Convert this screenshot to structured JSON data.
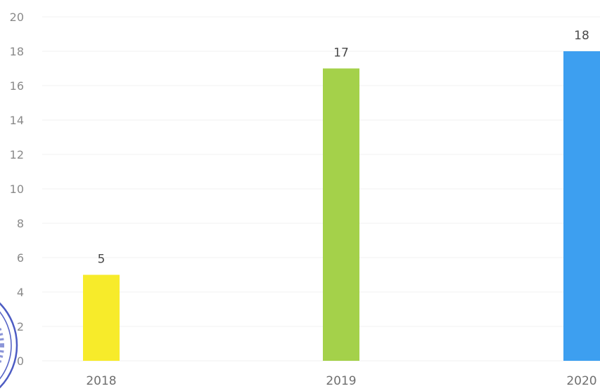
{
  "chart_data": {
    "type": "bar",
    "categories": [
      "2018",
      "2019",
      "2020"
    ],
    "values": [
      5,
      17,
      18
    ],
    "colors": [
      "#f7eb2a",
      "#a4d14a",
      "#3d9ff0"
    ],
    "ylim": [
      0,
      20
    ],
    "yticks": [
      "0",
      "2",
      "4",
      "6",
      "8",
      "10",
      "12",
      "14",
      "16",
      "18",
      "20"
    ],
    "data_labels": [
      "5",
      "17",
      "18"
    ],
    "grid": false,
    "legend": "none"
  },
  "stamp": {
    "color": "#2e3fb8"
  }
}
